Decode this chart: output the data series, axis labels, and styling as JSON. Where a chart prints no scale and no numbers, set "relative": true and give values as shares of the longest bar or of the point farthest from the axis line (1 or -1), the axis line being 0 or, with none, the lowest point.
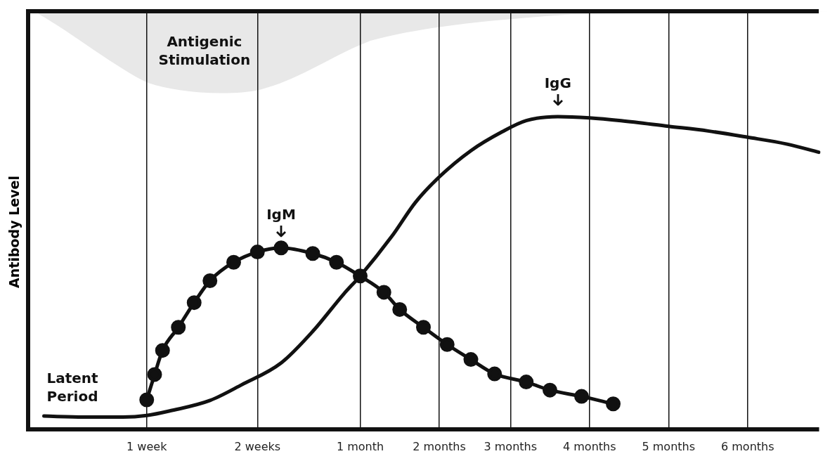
{
  "chart_data": {
    "type": "line",
    "relative": true,
    "ylabel": "Antibody Level",
    "categories": [
      null,
      null,
      null,
      null,
      null,
      null,
      null,
      null,
      null,
      null,
      null,
      null,
      null,
      null,
      null,
      "1 week",
      null,
      null,
      null,
      null,
      null,
      null,
      null,
      null,
      null,
      null,
      null,
      null,
      null,
      "2 weeks",
      null,
      null,
      null,
      null,
      null,
      null,
      null,
      null,
      null,
      null,
      null,
      null,
      "1 month",
      null,
      null,
      null,
      null,
      null,
      null,
      null,
      null,
      null,
      "2 months",
      null,
      null,
      null,
      null,
      null,
      null,
      null,
      null,
      "3 months",
      null,
      null,
      null,
      null,
      null,
      null,
      null,
      null,
      null,
      "4 months",
      null,
      null,
      null,
      null,
      null,
      null,
      null,
      null,
      null,
      "5 months",
      null,
      null,
      null,
      null,
      null,
      null,
      null,
      null,
      null,
      "6 months",
      null,
      null,
      null,
      null,
      null,
      null,
      null,
      null,
      null
    ],
    "grid": "x",
    "legend": false,
    "series": [
      {
        "name": "IgG",
        "color": "#111111",
        "marker": "none",
        "values": [
          null,
          null,
          0.042,
          null,
          null,
          null,
          null,
          0.039,
          null,
          null,
          null,
          null,
          0.039,
          null,
          null,
          0.044,
          null,
          null,
          0.059,
          null,
          null,
          null,
          null,
          0.092,
          null,
          null,
          null,
          0.142,
          null,
          null,
          null,
          null,
          0.212,
          null,
          null,
          null,
          0.313,
          null,
          null,
          null,
          0.435,
          null,
          0.49,
          null,
          null,
          null,
          0.617,
          null,
          null,
          0.726,
          null,
          null,
          0.807,
          null,
          null,
          null,
          0.891,
          null,
          null,
          null,
          0.952,
          null,
          null,
          0.987,
          null,
          null,
          null,
          1,
          null,
          null,
          null,
          0.996,
          null,
          null,
          null,
          0.987,
          null,
          null,
          null,
          null,
          null,
          0.969,
          null,
          null,
          null,
          null,
          0.954,
          null,
          null,
          null,
          null,
          0.934,
          null,
          null,
          null,
          null,
          0.912,
          null,
          null,
          null,
          0.886
        ]
      },
      {
        "name": "IgM",
        "color": "#111111",
        "marker": "circle",
        "values": [
          null,
          null,
          null,
          null,
          null,
          null,
          null,
          null,
          null,
          null,
          null,
          null,
          null,
          null,
          null,
          0.094,
          0.175,
          0.252,
          null,
          0.326,
          null,
          0.405,
          null,
          0.475,
          null,
          null,
          0.534,
          null,
          null,
          0.567,
          null,
          null,
          0.58,
          null,
          null,
          null,
          0.562,
          null,
          null,
          0.534,
          null,
          null,
          0.49,
          null,
          null,
          0.438,
          null,
          0.383,
          null,
          null,
          0.326,
          null,
          null,
          0.271,
          null,
          null,
          0.223,
          null,
          null,
          0.177,
          null,
          null,
          null,
          0.151,
          null,
          null,
          0.125,
          null,
          null,
          null,
          0.105,
          null,
          null,
          null,
          0.081,
          null,
          null,
          null,
          null,
          null,
          null,
          null,
          null,
          null,
          null,
          null,
          null,
          null,
          null,
          null,
          null,
          null,
          null,
          null,
          null,
          null,
          null,
          null,
          null,
          null,
          null
        ]
      }
    ],
    "annotations": [
      "Antigenic Stimulation",
      "Latent Period"
    ]
  }
}
